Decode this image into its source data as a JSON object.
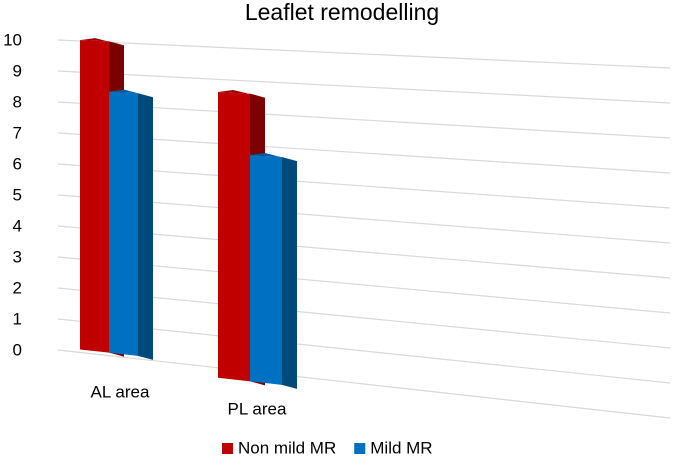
{
  "chart_data": {
    "type": "bar3d",
    "title": "Leaflet remodelling",
    "categories": [
      "AL area",
      "PL area"
    ],
    "series": [
      {
        "name": "Non mild MR",
        "color": "#c00000",
        "values": [
          10,
          8.7
        ]
      },
      {
        "name": "Mild MR",
        "color": "#0070c0",
        "values": [
          8.4,
          6.8
        ]
      }
    ],
    "ylim": [
      0,
      10
    ],
    "yticks": [
      0,
      1,
      2,
      3,
      4,
      5,
      6,
      7,
      8,
      9,
      10
    ],
    "grid": true,
    "legend": "bottom"
  }
}
